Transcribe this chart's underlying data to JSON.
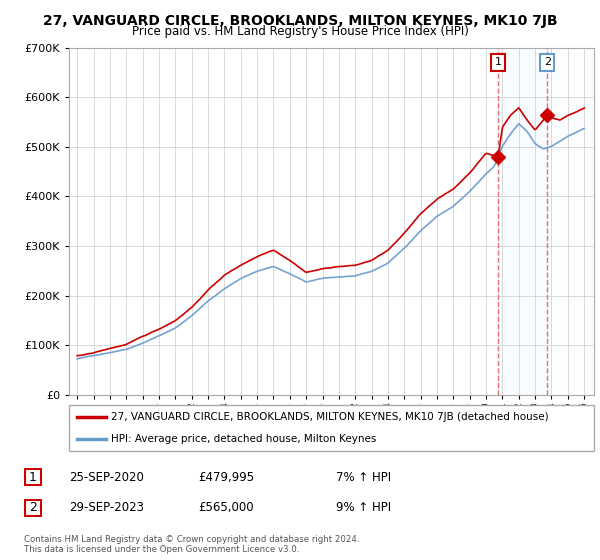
{
  "title": "27, VANGUARD CIRCLE, BROOKLANDS, MILTON KEYNES, MK10 7JB",
  "subtitle": "Price paid vs. HM Land Registry's House Price Index (HPI)",
  "legend_line1": "27, VANGUARD CIRCLE, BROOKLANDS, MILTON KEYNES, MK10 7JB (detached house)",
  "legend_line2": "HPI: Average price, detached house, Milton Keynes",
  "annotation1_date": "25-SEP-2020",
  "annotation1_price": "£479,995",
  "annotation1_hpi": "7% ↑ HPI",
  "annotation2_date": "29-SEP-2023",
  "annotation2_price": "£565,000",
  "annotation2_hpi": "9% ↑ HPI",
  "footer": "Contains HM Land Registry data © Crown copyright and database right 2024.\nThis data is licensed under the Open Government Licence v3.0.",
  "line1_color": "#cc0000",
  "line2_color": "#6699cc",
  "vline_color": "#dd6666",
  "shade_color": "#ddeeff",
  "ylim": [
    0,
    700000
  ],
  "yticks": [
    0,
    100000,
    200000,
    300000,
    400000,
    500000,
    600000,
    700000
  ],
  "sale1_year": 2020.73,
  "sale1_price": 479995,
  "sale2_year": 2023.74,
  "sale2_price": 565000,
  "bg_color": "#ffffff",
  "grid_color": "#cccccc"
}
